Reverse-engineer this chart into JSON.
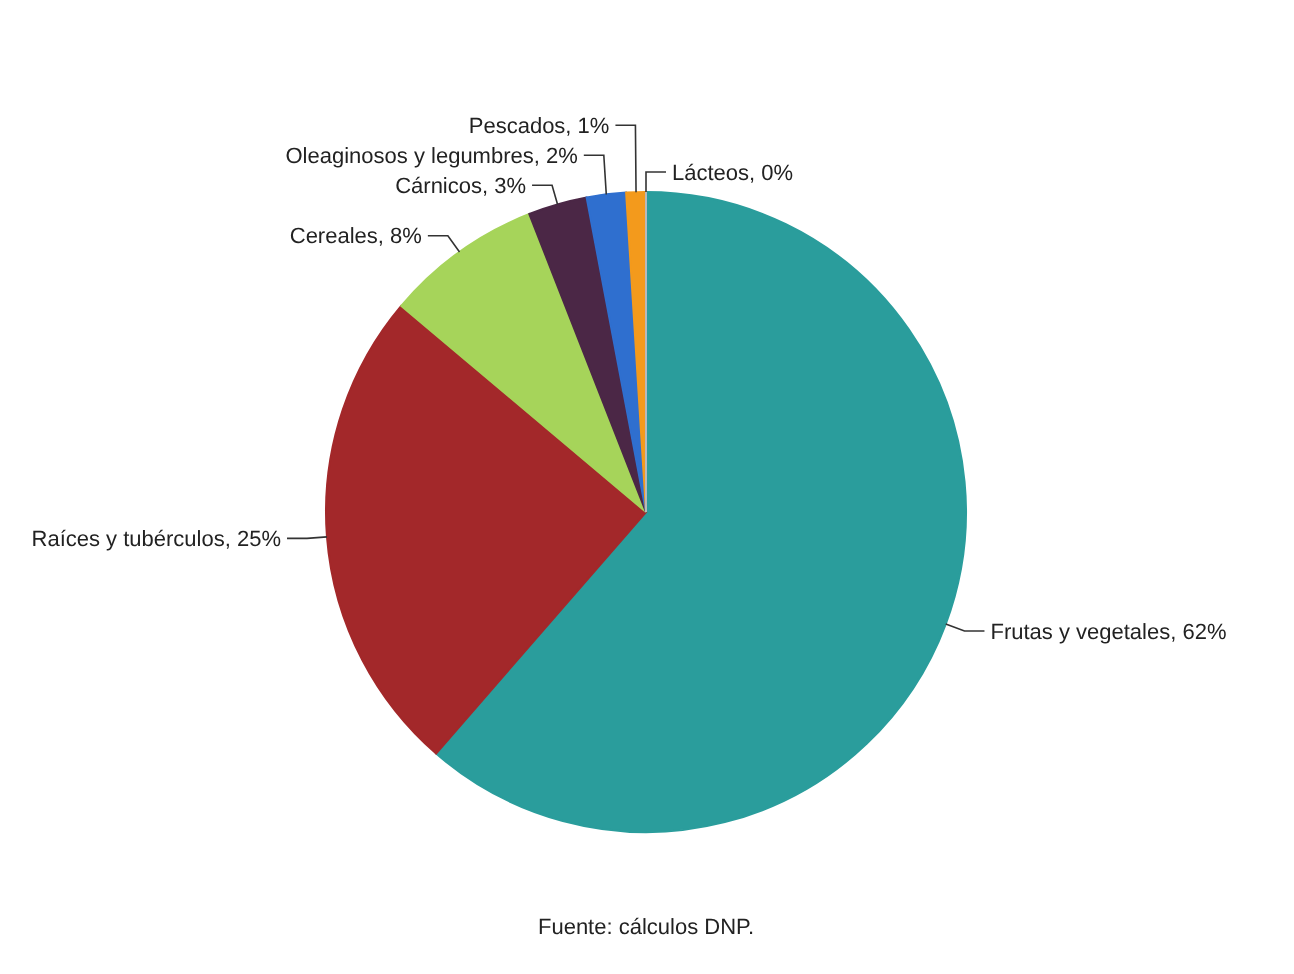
{
  "chart_data": {
    "type": "pie",
    "categories": [
      "Frutas y vegetales",
      "Raíces y tubérculos",
      "Cereales",
      "Cárnicos",
      "Oleaginosos y legumbres",
      "Pescados",
      "Lácteos"
    ],
    "values": [
      62,
      25,
      8,
      3,
      2,
      1,
      0
    ],
    "colors": [
      "#2a9d9c",
      "#a3282a",
      "#a6d45a",
      "#4b2746",
      "#2f6fcf",
      "#f39a1c",
      "#b9b9b9"
    ],
    "value_labels": [
      "62%",
      "25%",
      "8%",
      "3%",
      "2%",
      "1%",
      "0%"
    ],
    "annotations": [
      "Fuente: cálculos DNP."
    ]
  }
}
